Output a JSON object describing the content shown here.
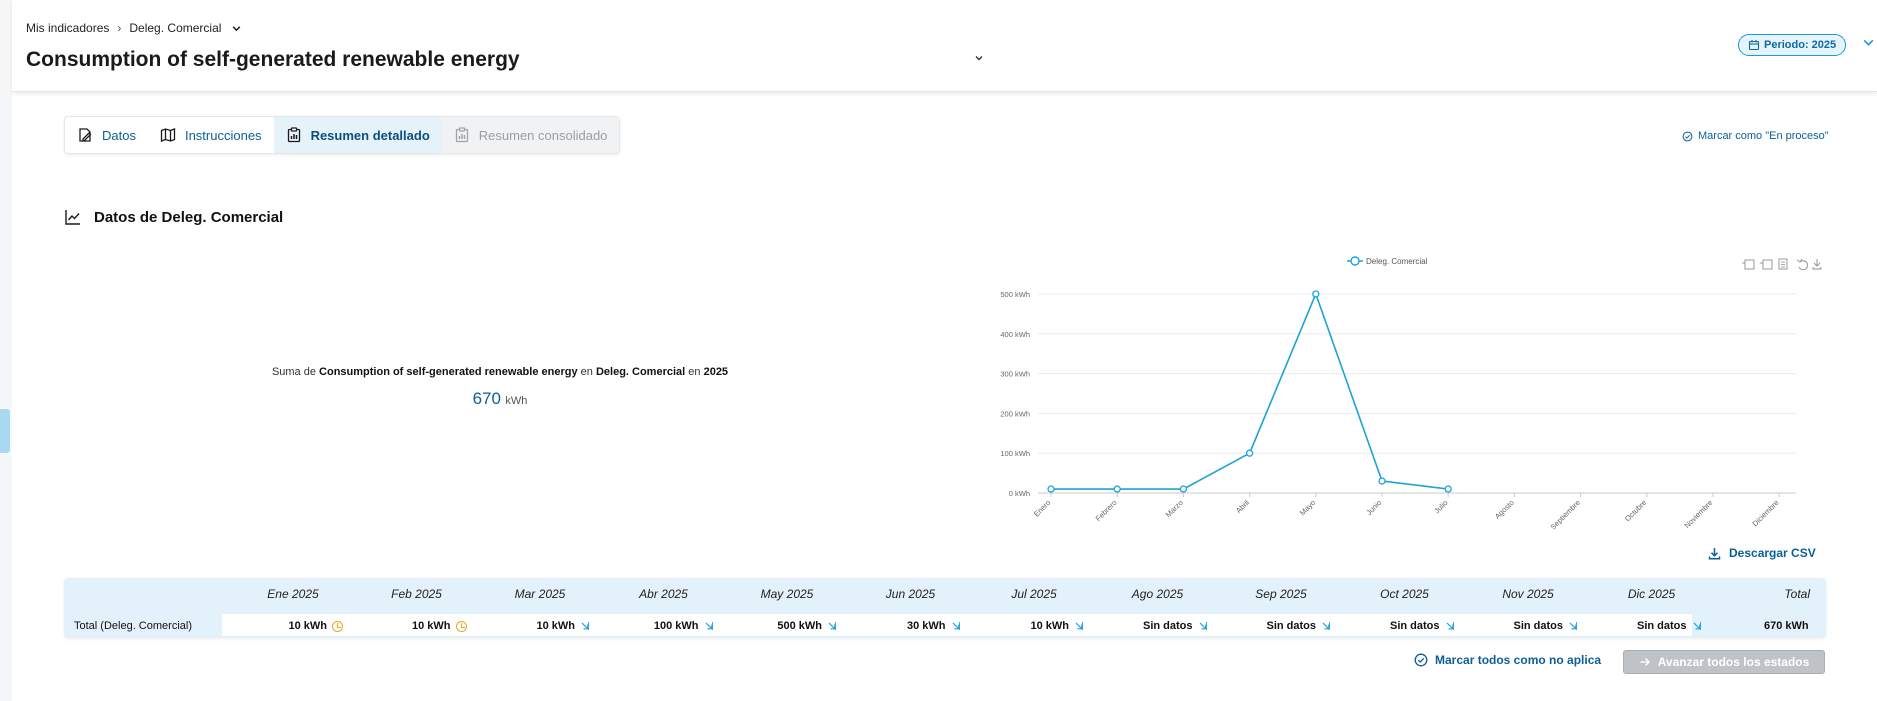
{
  "header": {
    "breadcrumb": {
      "root": "Mis indicadores",
      "current": "Deleg. Comercial"
    },
    "title": "Consumption of self-generated renewable energy",
    "period_label": "Periodo: 2025"
  },
  "tabs": [
    {
      "label": "Datos",
      "icon": "edit-icon",
      "state": "normal"
    },
    {
      "label": "Instrucciones",
      "icon": "map-icon",
      "state": "normal"
    },
    {
      "label": "Resumen detallado",
      "icon": "clipboard-chart-icon",
      "state": "active"
    },
    {
      "label": "Resumen consolidado",
      "icon": "clipboard-chart-icon",
      "state": "disabled"
    }
  ],
  "status_link": "Marcar como \"En proceso\"",
  "section": {
    "title": "Datos de Deleg. Comercial"
  },
  "summary": {
    "prefix": "Suma de ",
    "indicator": "Consumption of self-generated renewable energy",
    "mid1": " en ",
    "entity": "Deleg. Comercial",
    "mid2": " en ",
    "year": "2025",
    "value": "670",
    "unit": "kWh"
  },
  "chart_data": {
    "type": "line",
    "categories": [
      "Enero",
      "Febrero",
      "Marzo",
      "Abril",
      "Mayo",
      "Junio",
      "Julio",
      "Agosto",
      "Septiembre",
      "Octubre",
      "Noviembre",
      "Diciembre"
    ],
    "series": [
      {
        "name": "Deleg. Comercial",
        "values": [
          10,
          10,
          10,
          100,
          500,
          30,
          10,
          null,
          null,
          null,
          null,
          null
        ],
        "color": "#1ba3d8"
      }
    ],
    "y_ticks": [
      "0 kWh",
      "100 kWh",
      "200 kWh",
      "300 kWh",
      "400 kWh",
      "500 kWh"
    ],
    "ylim": [
      0,
      500
    ],
    "legend": "top-center",
    "grid": true
  },
  "download_label": "Descargar CSV",
  "table": {
    "headers": [
      "Ene 2025",
      "Feb 2025",
      "Mar 2025",
      "Abr 2025",
      "May 2025",
      "Jun 2025",
      "Jul 2025",
      "Ago 2025",
      "Sep 2025",
      "Oct 2025",
      "Nov 2025",
      "Dic 2025"
    ],
    "total_header": "Total",
    "row_label": "Total (Deleg. Comercial)",
    "cells": [
      {
        "value": "10 kWh",
        "icon": "clock-icon"
      },
      {
        "value": "10 kWh",
        "icon": "clock-icon"
      },
      {
        "value": "10 kWh",
        "icon": "arrow-icon"
      },
      {
        "value": "100 kWh",
        "icon": "arrow-icon"
      },
      {
        "value": "500 kWh",
        "icon": "arrow-icon"
      },
      {
        "value": "30 kWh",
        "icon": "arrow-icon"
      },
      {
        "value": "10 kWh",
        "icon": "arrow-icon"
      },
      {
        "value": "Sin datos",
        "icon": "arrow-icon"
      },
      {
        "value": "Sin datos",
        "icon": "arrow-icon"
      },
      {
        "value": "Sin datos",
        "icon": "arrow-icon"
      },
      {
        "value": "Sin datos",
        "icon": "arrow-icon"
      },
      {
        "value": "Sin datos",
        "icon": "arrow-icon"
      }
    ],
    "total": "670 kWh"
  },
  "actions": {
    "mark_all": "Marcar todos como no aplica",
    "advance_all": "Avanzar todos los estados"
  },
  "colors": {
    "accent": "#0b5f99",
    "line": "#1ba3d8",
    "pending": "#f2a51a"
  }
}
